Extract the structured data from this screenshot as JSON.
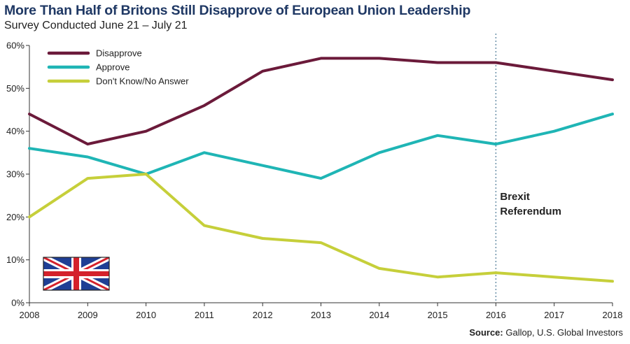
{
  "header": {
    "title": "More Than Half of Britons Still Disapprove of European Union Leadership",
    "subtitle": "Survey Conducted June 21 – July 21"
  },
  "footer": {
    "source_label": "Source:",
    "source_text": " Gallop, U.S. Global Investors"
  },
  "flag": {
    "icon": "union-jack-flag-icon"
  },
  "chart_data": {
    "type": "line",
    "title": "More Than Half of Britons Still Disapprove of European Union Leadership",
    "subtitle": "Survey Conducted June 21 – July 21",
    "x": [
      2008,
      2009,
      2010,
      2011,
      2012,
      2013,
      2014,
      2015,
      2016,
      2017,
      2018
    ],
    "x_tick_labels": [
      "2008",
      "2009",
      "2010",
      "2011",
      "2012",
      "2013",
      "2014",
      "2015",
      "2016",
      "2017",
      "2018"
    ],
    "y_tick_labels": [
      "0%",
      "10%",
      "20%",
      "30%",
      "40%",
      "50%",
      "60%"
    ],
    "y_ticks": [
      0,
      10,
      20,
      30,
      40,
      50,
      60
    ],
    "ylim": [
      0,
      60
    ],
    "grid": false,
    "legend_position": "top-left",
    "series": [
      {
        "name": "Disapprove",
        "color": "#6b1a3a",
        "values": [
          44,
          37,
          40,
          46,
          54,
          57,
          57,
          56,
          56,
          54,
          52
        ]
      },
      {
        "name": "Approve",
        "color": "#1fb5b5",
        "values": [
          36,
          34,
          30,
          35,
          32,
          29,
          35,
          39,
          37,
          40,
          44
        ]
      },
      {
        "name": "Don't Know/No Answer",
        "color": "#c6cf3a",
        "values": [
          20,
          29,
          30,
          18,
          15,
          14,
          8,
          6,
          7,
          6,
          5
        ]
      }
    ],
    "annotations": [
      {
        "type": "vertical-line",
        "x": 2016,
        "style": "dotted",
        "color": "#6a8fa8",
        "label_lines": [
          "Brexit",
          "Referendum"
        ]
      }
    ]
  }
}
